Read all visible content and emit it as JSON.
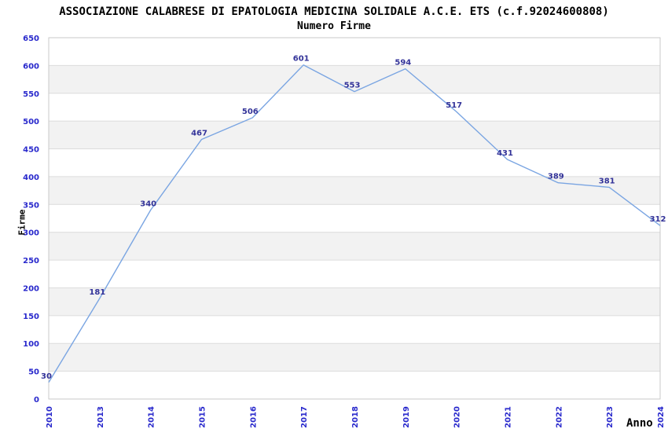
{
  "chart_data": {
    "type": "line",
    "title": "ASSOCIAZIONE CALABRESE DI EPATOLOGIA MEDICINA SOLIDALE A.C.E. ETS (c.f.92024600808)",
    "subtitle": "Numero Firme",
    "xlabel": "Anno",
    "ylabel": "Firme",
    "categories": [
      "2010",
      "2013",
      "2014",
      "2015",
      "2016",
      "2017",
      "2018",
      "2019",
      "2020",
      "2021",
      "2022",
      "2023",
      "2024"
    ],
    "values": [
      30,
      181,
      340,
      467,
      506,
      601,
      553,
      594,
      517,
      431,
      389,
      381,
      312
    ],
    "ylim": [
      0,
      650
    ],
    "ytick_step": 50,
    "yticks": [
      0,
      50,
      100,
      150,
      200,
      250,
      300,
      350,
      400,
      450,
      500,
      550,
      600,
      650
    ],
    "grid": "horizontal gridlines every 50 with alternating gray bands",
    "legend": "none",
    "data_labels_visible": true,
    "x_tick_rotation_degrees": -90,
    "colors": {
      "line": "#7aa5e2",
      "axis_tick_label": "#2828cc",
      "data_label": "#333399",
      "band_gray": "#f2f2f2",
      "band_white": "#ffffff",
      "gridline": "#dcdcdc",
      "plot_border": "#c9c9c9",
      "title_text": "#000000",
      "background": "#ffffff"
    }
  }
}
